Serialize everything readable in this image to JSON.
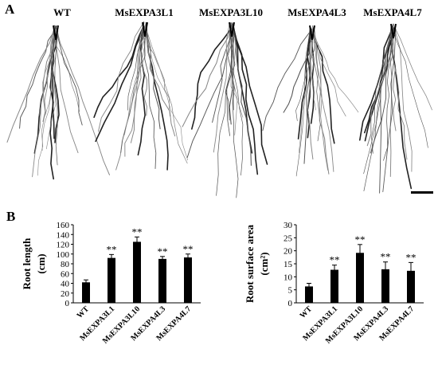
{
  "panels": {
    "a_label": "A",
    "b_label": "B"
  },
  "genotypes": [
    "WT",
    "MsEXPA3L1",
    "MsEXPA3L10",
    "MsEXPA4L3",
    "MsEXPA4L7"
  ],
  "chart_data": [
    {
      "type": "bar",
      "ylabel": "Root length (cm)",
      "ylabel_lines": [
        "Root length",
        "(cm)"
      ],
      "categories": [
        "WT",
        "MsEXPA3L1",
        "MsEXPA3L10",
        "MsEXPA4L3",
        "MsEXPA4L7"
      ],
      "values": [
        42,
        92,
        125,
        90,
        93
      ],
      "errors": [
        5,
        7,
        10,
        5,
        7
      ],
      "significance": [
        "",
        "**",
        "**",
        "**",
        "**"
      ],
      "ylim": [
        0,
        160
      ],
      "yticks": [
        0,
        20,
        40,
        60,
        80,
        100,
        120,
        140,
        160
      ],
      "bar_color": "#000000",
      "grid": false
    },
    {
      "type": "bar",
      "ylabel": "Root surface area (cm²)",
      "ylabel_lines": [
        "Root surface  area",
        "(cm²)"
      ],
      "categories": [
        "WT",
        "MsEXPA3L1",
        "MsEXPA3L10",
        "MsEXPA4L3",
        "MsEXPA4L7"
      ],
      "values": [
        6.3,
        12.7,
        19.2,
        12.9,
        12.3
      ],
      "errors": [
        1.2,
        1.8,
        3.2,
        2.8,
        3.2
      ],
      "significance": [
        "",
        "**",
        "**",
        "**",
        "**"
      ],
      "ylim": [
        0,
        30
      ],
      "yticks": [
        0,
        5,
        10,
        15,
        20,
        25,
        30
      ],
      "bar_color": "#000000",
      "grid": false
    }
  ]
}
